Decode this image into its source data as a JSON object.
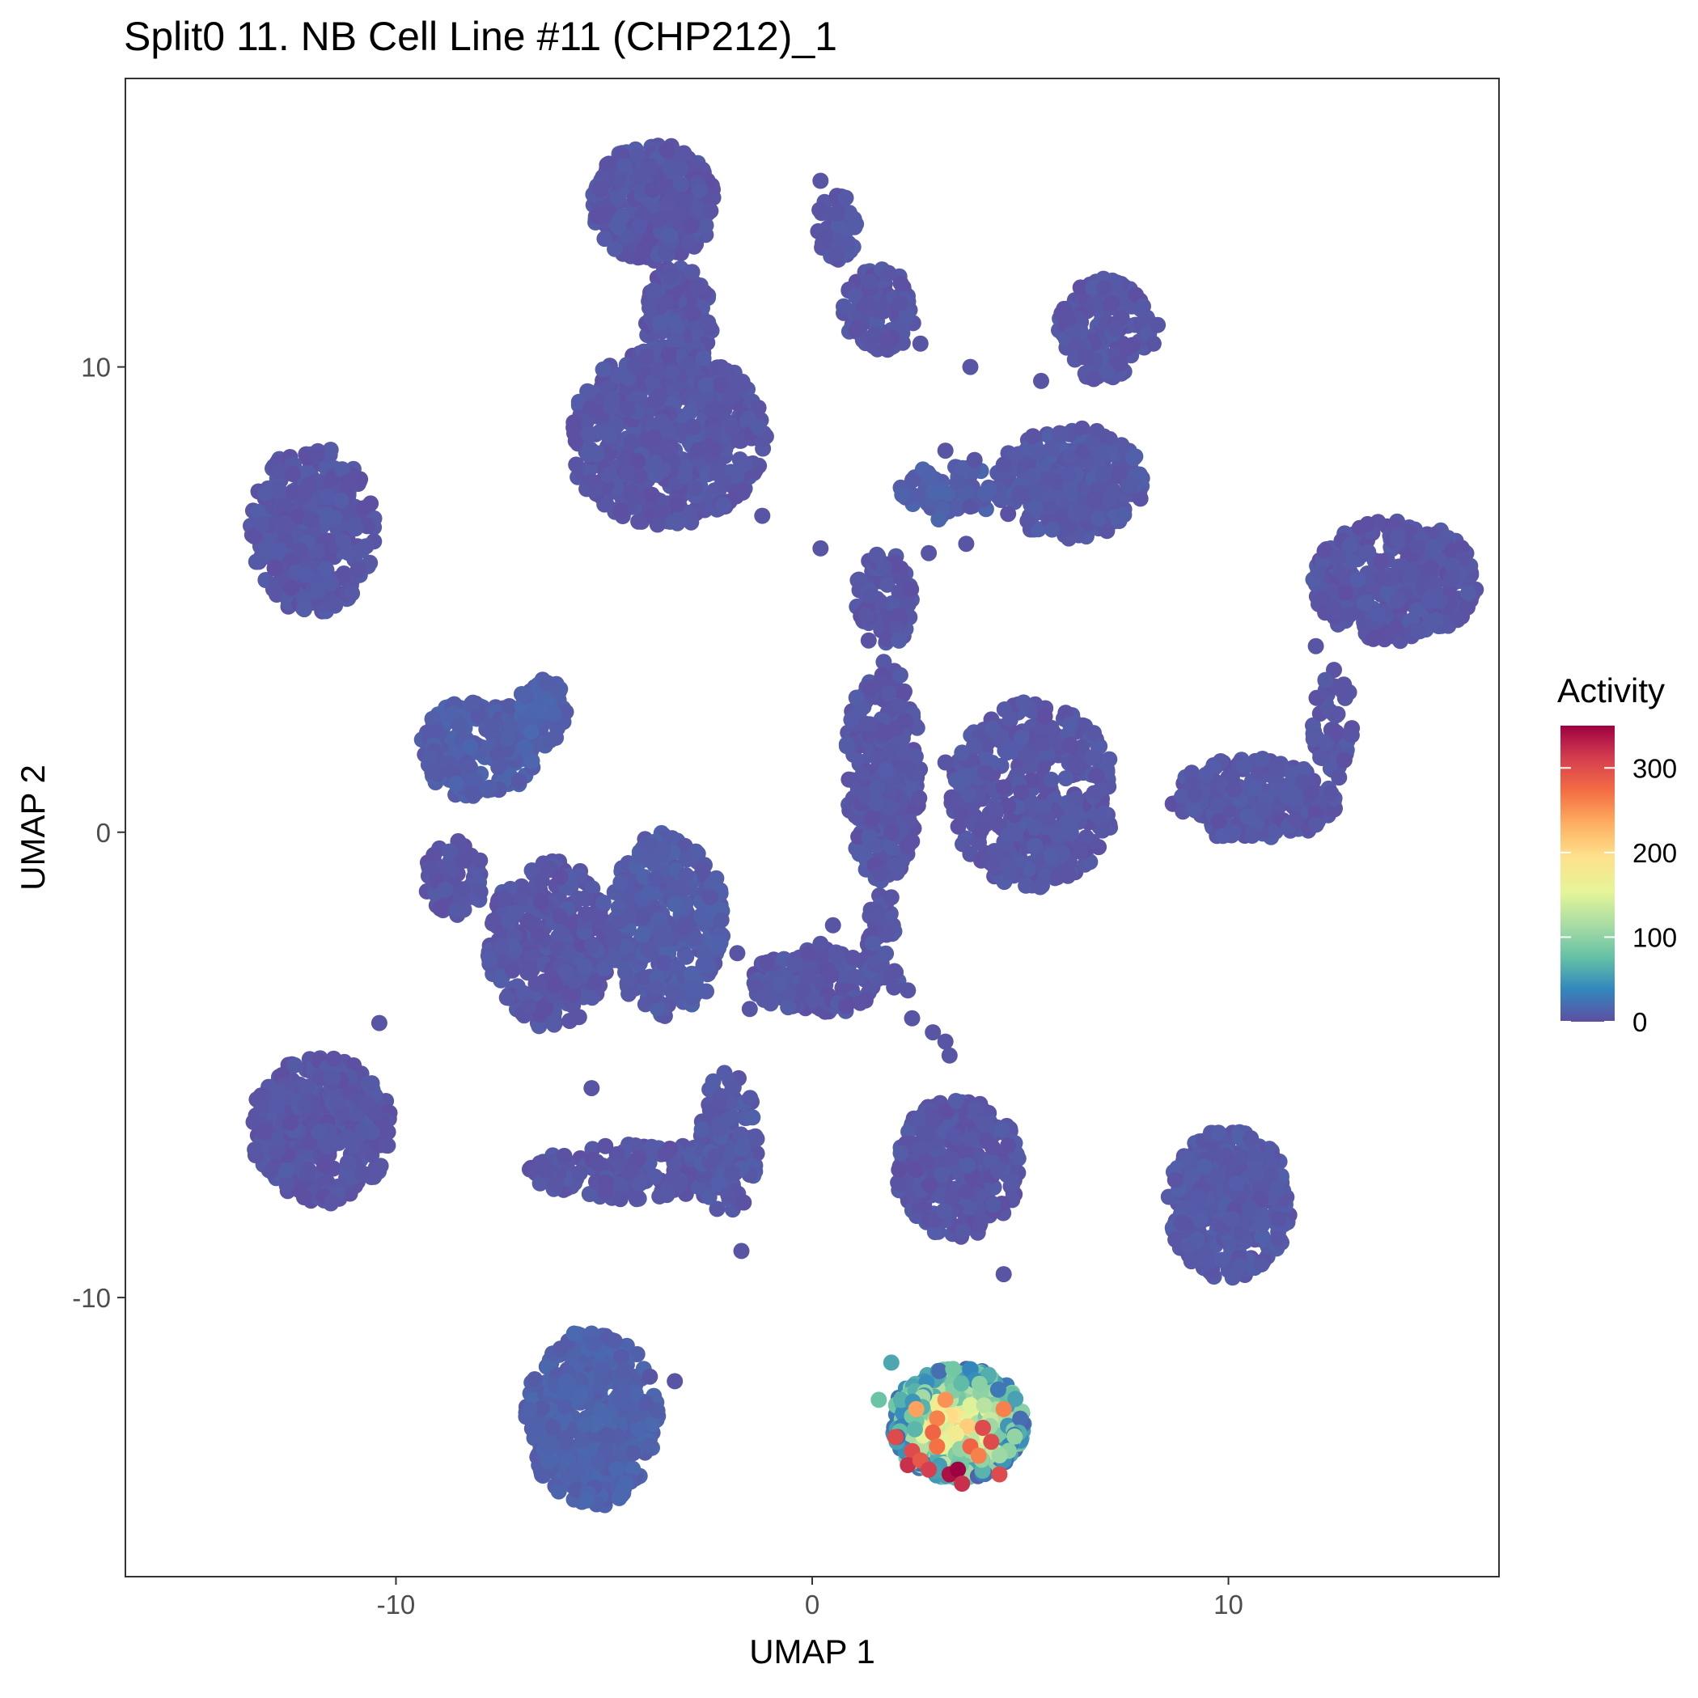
{
  "chart_data": {
    "type": "scatter",
    "title": "Split0 11. NB Cell Line #11 (CHP212)_1",
    "xlabel": "UMAP 1",
    "ylabel": "UMAP 2",
    "xlim": [
      -16.5,
      16.5
    ],
    "ylim": [
      -16,
      16.2
    ],
    "x_ticks": [
      {
        "value": -10,
        "label": "-10"
      },
      {
        "value": 0,
        "label": "0"
      },
      {
        "value": 10,
        "label": "10"
      }
    ],
    "y_ticks": [
      {
        "value": -10,
        "label": "-10"
      },
      {
        "value": 0,
        "label": "0"
      },
      {
        "value": 10,
        "label": "10"
      }
    ],
    "grid": false,
    "legend": {
      "title": "Activity",
      "placement": "right",
      "min": 0,
      "max": 350,
      "ticks": [
        {
          "value": 0,
          "label": "0"
        },
        {
          "value": 100,
          "label": "100"
        },
        {
          "value": 200,
          "label": "200"
        },
        {
          "value": 300,
          "label": "300"
        }
      ],
      "colors": [
        "#5e4fa2",
        "#3288bd",
        "#66c2a5",
        "#abdda4",
        "#e6f598",
        "#fee08b",
        "#fdae61",
        "#f46d43",
        "#d53e4f",
        "#9e0142"
      ]
    },
    "clusters": [
      {
        "cx": -3.8,
        "cy": 13.5,
        "rx": 1.5,
        "ry": 1.3,
        "n": 300,
        "activity": 4
      },
      {
        "cx": -3.2,
        "cy": 11.0,
        "rx": 0.8,
        "ry": 1.2,
        "n": 120,
        "activity": 4
      },
      {
        "cx": -3.5,
        "cy": 8.5,
        "rx": 2.4,
        "ry": 1.9,
        "n": 600,
        "activity": 4
      },
      {
        "cx": 1.6,
        "cy": 11.2,
        "rx": 0.9,
        "ry": 0.9,
        "n": 110,
        "activity": 4
      },
      {
        "cx": 0.6,
        "cy": 13.0,
        "rx": 0.5,
        "ry": 0.7,
        "n": 50,
        "activity": 4
      },
      {
        "cx": 7.0,
        "cy": 10.8,
        "rx": 1.1,
        "ry": 1.1,
        "n": 160,
        "activity": 4
      },
      {
        "cx": 6.2,
        "cy": 7.5,
        "rx": 1.8,
        "ry": 1.2,
        "n": 280,
        "activity": 6
      },
      {
        "cx": 3.3,
        "cy": 7.3,
        "rx": 1.2,
        "ry": 0.6,
        "n": 70,
        "activity": 10
      },
      {
        "cx": 1.7,
        "cy": 5.0,
        "rx": 0.7,
        "ry": 1.1,
        "n": 80,
        "activity": 4
      },
      {
        "cx": 1.7,
        "cy": 1.3,
        "rx": 0.9,
        "ry": 2.4,
        "n": 260,
        "activity": 4
      },
      {
        "cx": 5.3,
        "cy": 0.8,
        "rx": 2.0,
        "ry": 2.0,
        "n": 420,
        "activity": 4
      },
      {
        "cx": 14.0,
        "cy": 5.4,
        "rx": 2.0,
        "ry": 1.3,
        "n": 360,
        "activity": 4
      },
      {
        "cx": 12.5,
        "cy": 2.3,
        "rx": 0.5,
        "ry": 1.2,
        "n": 60,
        "activity": 4
      },
      {
        "cx": 10.6,
        "cy": 0.7,
        "rx": 2.0,
        "ry": 0.9,
        "n": 220,
        "activity": 4
      },
      {
        "cx": -12.0,
        "cy": 6.5,
        "rx": 1.5,
        "ry": 1.8,
        "n": 320,
        "activity": 4
      },
      {
        "cx": -8.0,
        "cy": 1.8,
        "rx": 1.4,
        "ry": 1.1,
        "n": 230,
        "activity": 10
      },
      {
        "cx": -6.5,
        "cy": 2.6,
        "rx": 0.6,
        "ry": 0.8,
        "n": 60,
        "activity": 12
      },
      {
        "cx": -8.6,
        "cy": -1.0,
        "rx": 0.7,
        "ry": 0.9,
        "n": 70,
        "activity": 4
      },
      {
        "cx": -6.3,
        "cy": -2.4,
        "rx": 1.5,
        "ry": 1.8,
        "n": 320,
        "activity": 4
      },
      {
        "cx": -3.5,
        "cy": -2.0,
        "rx": 1.4,
        "ry": 2.0,
        "n": 320,
        "activity": 8
      },
      {
        "cx": 0.3,
        "cy": -3.2,
        "rx": 1.8,
        "ry": 0.7,
        "n": 160,
        "activity": 4
      },
      {
        "cx": 1.6,
        "cy": -2.0,
        "rx": 0.4,
        "ry": 0.7,
        "n": 30,
        "activity": 4
      },
      {
        "cx": -11.8,
        "cy": -6.4,
        "rx": 1.7,
        "ry": 1.6,
        "n": 360,
        "activity": 4
      },
      {
        "cx": -4.0,
        "cy": -7.3,
        "rx": 2.8,
        "ry": 0.6,
        "n": 170,
        "activity": 4
      },
      {
        "cx": -2.0,
        "cy": -6.7,
        "rx": 0.7,
        "ry": 1.6,
        "n": 110,
        "activity": 6
      },
      {
        "cx": 3.5,
        "cy": -7.2,
        "rx": 1.5,
        "ry": 1.5,
        "n": 320,
        "activity": 4
      },
      {
        "cx": 10.0,
        "cy": -8.0,
        "rx": 1.5,
        "ry": 1.6,
        "n": 320,
        "activity": 6
      },
      {
        "cx": -5.3,
        "cy": -12.6,
        "rx": 1.6,
        "ry": 1.9,
        "n": 420,
        "activity": 12
      },
      {
        "cx": 3.5,
        "cy": -12.7,
        "rx": 1.6,
        "ry": 1.2,
        "n": 650,
        "activity": 170
      }
    ],
    "points": [
      {
        "x": 3.8,
        "y": 10.0,
        "activity": 4
      },
      {
        "x": -1.2,
        "y": 6.8,
        "activity": 4
      },
      {
        "x": 0.2,
        "y": 6.1,
        "activity": 4
      },
      {
        "x": 2.8,
        "y": 6.0,
        "activity": 4
      },
      {
        "x": 3.7,
        "y": 6.2,
        "activity": 4
      },
      {
        "x": 3.8,
        "y": 7.0,
        "activity": 4
      },
      {
        "x": 4.6,
        "y": 7.9,
        "activity": 4
      },
      {
        "x": 3.9,
        "y": 8.0,
        "activity": 4
      },
      {
        "x": 3.2,
        "y": 8.2,
        "activity": 4
      },
      {
        "x": 0.2,
        "y": 14.0,
        "activity": 4
      },
      {
        "x": 0.6,
        "y": 13.3,
        "activity": 4
      },
      {
        "x": 0.3,
        "y": 12.8,
        "activity": 4
      },
      {
        "x": 1.5,
        "y": 10.7,
        "activity": 4
      },
      {
        "x": 2.6,
        "y": 10.5,
        "activity": 4
      },
      {
        "x": 2.3,
        "y": 1.4,
        "activity": 4
      },
      {
        "x": 3.2,
        "y": 1.5,
        "activity": 4
      },
      {
        "x": 1.9,
        "y": -1.4,
        "activity": 4
      },
      {
        "x": 0.5,
        "y": -2.0,
        "activity": 4
      },
      {
        "x": 0.2,
        "y": -2.4,
        "activity": 4
      },
      {
        "x": 2.3,
        "y": -3.4,
        "activity": 4
      },
      {
        "x": 2.4,
        "y": -4.0,
        "activity": 4
      },
      {
        "x": 2.9,
        "y": -4.3,
        "activity": 4
      },
      {
        "x": 3.2,
        "y": -4.5,
        "activity": 4
      },
      {
        "x": 3.3,
        "y": -4.8,
        "activity": 4
      },
      {
        "x": -1.5,
        "y": -3.8,
        "activity": 4
      },
      {
        "x": -1.8,
        "y": -2.6,
        "activity": 4
      },
      {
        "x": -10.4,
        "y": -4.1,
        "activity": 4
      },
      {
        "x": -5.3,
        "y": -5.5,
        "activity": 4
      },
      {
        "x": -1.7,
        "y": -9.0,
        "activity": 4
      },
      {
        "x": 4.6,
        "y": -9.5,
        "activity": 4
      },
      {
        "x": 9.2,
        "y": 0.8,
        "activity": 4
      },
      {
        "x": 12.1,
        "y": 4.0,
        "activity": 4
      },
      {
        "x": -3.9,
        "y": -11.7,
        "activity": 4
      },
      {
        "x": -3.3,
        "y": -11.8,
        "activity": 4
      },
      {
        "x": 8.2,
        "y": 10.5,
        "activity": 4
      },
      {
        "x": 8.3,
        "y": 10.9,
        "activity": 4
      },
      {
        "x": 5.5,
        "y": 9.7,
        "activity": 4
      },
      {
        "x": 1.9,
        "y": -11.4,
        "activity": 60
      },
      {
        "x": 1.6,
        "y": -12.2,
        "activity": 80
      },
      {
        "x": 2.0,
        "y": -13.0,
        "activity": 300
      },
      {
        "x": 2.4,
        "y": -13.3,
        "activity": 300
      },
      {
        "x": 2.3,
        "y": -13.6,
        "activity": 320
      },
      {
        "x": 2.6,
        "y": -13.5,
        "activity": 290
      },
      {
        "x": 2.8,
        "y": -13.7,
        "activity": 310
      },
      {
        "x": 3.0,
        "y": -12.6,
        "activity": 260
      },
      {
        "x": 2.9,
        "y": -12.9,
        "activity": 280
      },
      {
        "x": 3.3,
        "y": -13.8,
        "activity": 340
      },
      {
        "x": 3.5,
        "y": -13.7,
        "activity": 350
      },
      {
        "x": 3.6,
        "y": -14.0,
        "activity": 320
      },
      {
        "x": 3.8,
        "y": -13.2,
        "activity": 280
      },
      {
        "x": 4.1,
        "y": -12.8,
        "activity": 300
      },
      {
        "x": 4.3,
        "y": -13.1,
        "activity": 300
      },
      {
        "x": 4.5,
        "y": -13.8,
        "activity": 300
      },
      {
        "x": 4.0,
        "y": -13.4,
        "activity": 260
      },
      {
        "x": 3.2,
        "y": -12.2,
        "activity": 250
      },
      {
        "x": 4.6,
        "y": -12.4,
        "activity": 260
      },
      {
        "x": 3.0,
        "y": -13.2,
        "activity": 270
      },
      {
        "x": 2.5,
        "y": -12.4,
        "activity": 240
      }
    ]
  }
}
